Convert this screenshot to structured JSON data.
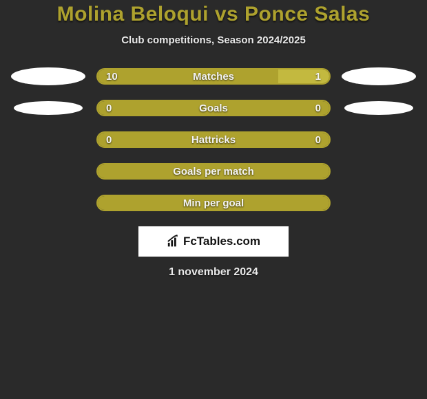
{
  "header": {
    "title": "Molina Beloqui vs Ponce Salas",
    "subtitle": "Club competitions, Season 2024/2025"
  },
  "colors": {
    "accent": "#aea22e",
    "accent_light": "#c3b93f",
    "fill_empty": "#5e5930",
    "background": "#2a2a2a",
    "text": "#f4f4f4",
    "avatar": "#ffffff"
  },
  "players": {
    "left": {
      "avatar_large": true
    },
    "right": {
      "avatar_large": true
    }
  },
  "stats": [
    {
      "label": "Matches",
      "left_value": "10",
      "right_value": "1",
      "left_pct": 78,
      "right_pct": 22,
      "left_color": "#aea22e",
      "right_color": "#c3b93f",
      "show_avatars": "large"
    },
    {
      "label": "Goals",
      "left_value": "0",
      "right_value": "0",
      "left_pct": 50,
      "right_pct": 50,
      "left_color": "#aea22e",
      "right_color": "#aea22e",
      "show_avatars": "small"
    },
    {
      "label": "Hattricks",
      "left_value": "0",
      "right_value": "0",
      "left_pct": 50,
      "right_pct": 50,
      "left_color": "#aea22e",
      "right_color": "#aea22e",
      "show_avatars": "none"
    },
    {
      "label": "Goals per match",
      "left_value": "",
      "right_value": "",
      "left_pct": 50,
      "right_pct": 50,
      "left_color": "#aea22e",
      "right_color": "#aea22e",
      "show_avatars": "none"
    },
    {
      "label": "Min per goal",
      "left_value": "",
      "right_value": "",
      "left_pct": 50,
      "right_pct": 50,
      "left_color": "#aea22e",
      "right_color": "#aea22e",
      "show_avatars": "none"
    }
  ],
  "branding": {
    "text": "FcTables.com"
  },
  "footer": {
    "date": "1 november 2024"
  }
}
